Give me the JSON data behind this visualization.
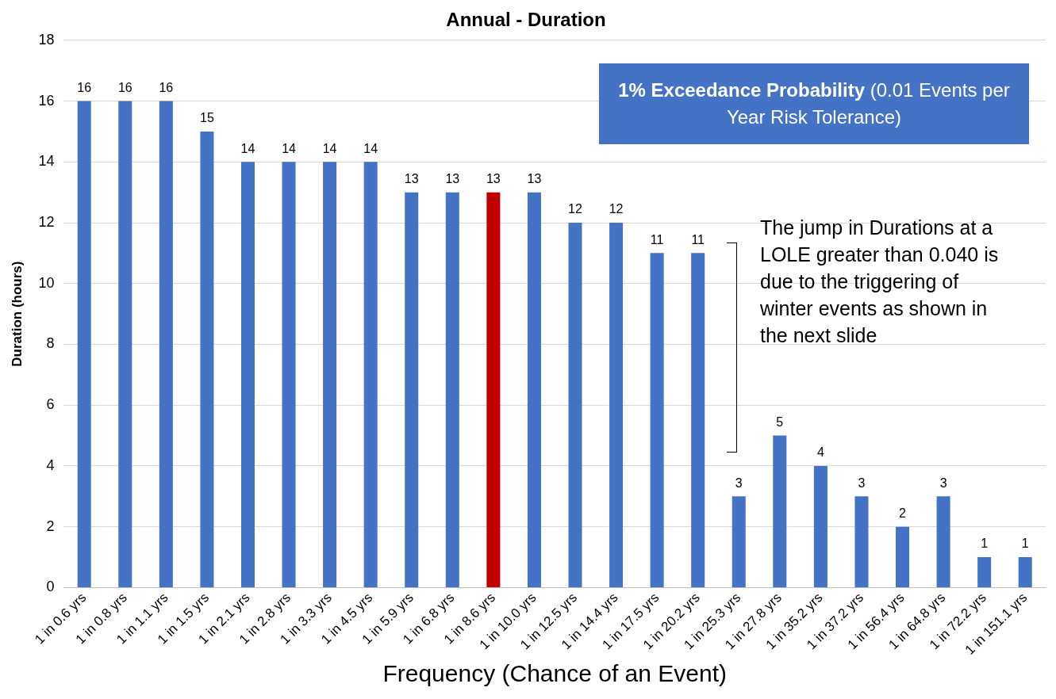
{
  "chart_data": {
    "type": "bar",
    "title": "Annual - Duration",
    "xlabel": "Frequency (Chance of an Event)",
    "ylabel": "Duration (hours)",
    "categories": [
      "1 in 0.6 yrs",
      "1 in 0.8 yrs",
      "1 in 1.1 yrs",
      "1 in 1.5 yrs",
      "1 in 2.1 yrs",
      "1 in 2.8 yrs",
      "1 in 3.3 yrs",
      "1 in 4.5 yrs",
      "1 in 5.9 yrs",
      "1 in 6.8 yrs",
      "1 in 8.6 yrs",
      "1 in 10.0 yrs",
      "1 in 12.5 yrs",
      "1 in 14.4 yrs",
      "1 in 17.5 yrs",
      "1 in 20.2 yrs",
      "1 in 25.3 yrs",
      "1 in 27.8 yrs",
      "1 in 35.2 yrs",
      "1 in 37.2 yrs",
      "1 in 56.4 yrs",
      "1 in 64.8 yrs",
      "1 in 72.2 yrs",
      "1 in 151.1 yrs"
    ],
    "values": [
      16,
      16,
      16,
      15,
      14,
      14,
      14,
      14,
      13,
      13,
      13,
      13,
      12,
      12,
      11,
      11,
      3,
      5,
      4,
      3,
      2,
      3,
      1,
      1
    ],
    "colors": [
      "#4472c4",
      "#4472c4",
      "#4472c4",
      "#4472c4",
      "#4472c4",
      "#4472c4",
      "#4472c4",
      "#4472c4",
      "#4472c4",
      "#4472c4",
      "#c00000",
      "#4472c4",
      "#4472c4",
      "#4472c4",
      "#4472c4",
      "#4472c4",
      "#4472c4",
      "#4472c4",
      "#4472c4",
      "#4472c4",
      "#4472c4",
      "#4472c4",
      "#4472c4",
      "#4472c4"
    ],
    "ylim": [
      0,
      18
    ],
    "yticks": [
      0,
      2,
      4,
      6,
      8,
      10,
      12,
      14,
      16,
      18
    ],
    "grid": "y",
    "data_labels": true,
    "annotations": [
      "1% Exceedance Probability",
      "(0.01 Events per Year Risk Tolerance)",
      "The jump in Durations at a LOLE greater than 0.040 is due to the triggering of winter events as shown in the next slide"
    ]
  }
}
